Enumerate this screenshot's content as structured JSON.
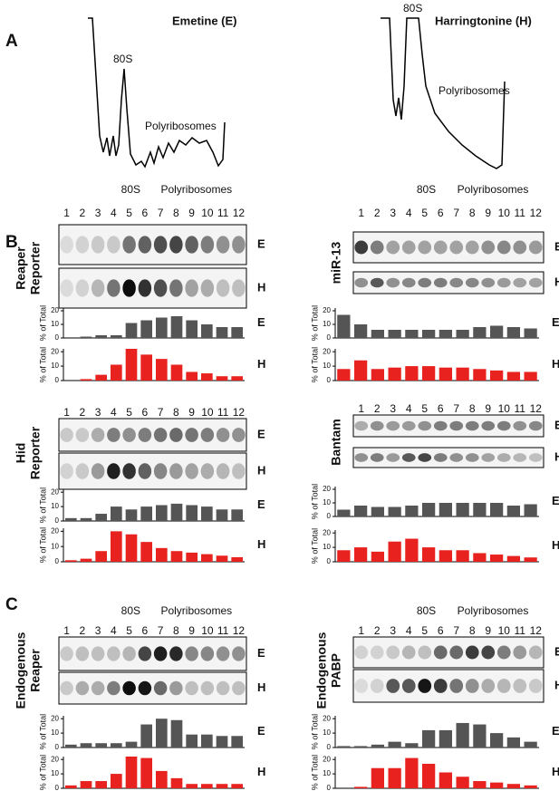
{
  "panel_labels": [
    "A",
    "B",
    "C"
  ],
  "profiles": [
    {
      "title": "Emetine (E)",
      "peak_label": "80S",
      "region_label": "Polyribosomes"
    },
    {
      "title": "Harringtonine (H)",
      "peak_label": "80S",
      "region_label": "Polyribosomes"
    }
  ],
  "blots": [
    {
      "name": [
        "Reaper",
        "Reporter"
      ],
      "peak_label": "80S",
      "region_label": "Polyribosomes",
      "lanes": [
        "1",
        "2",
        "3",
        "4",
        "5",
        "6",
        "7",
        "8",
        "9",
        "10",
        "11",
        "12"
      ],
      "rows": [
        "E",
        "H"
      ]
    },
    {
      "name": [
        "Hid",
        "Reporter"
      ],
      "lanes": [
        "1",
        "2",
        "3",
        "4",
        "5",
        "6",
        "7",
        "8",
        "9",
        "10",
        "11",
        "12"
      ],
      "rows": [
        "E",
        "H"
      ]
    },
    {
      "name": [
        "miR-13"
      ],
      "peak_label": "80S",
      "region_label": "Polyribosomes",
      "lanes": [
        "1",
        "2",
        "3",
        "4",
        "5",
        "6",
        "7",
        "8",
        "9",
        "10",
        "11",
        "12"
      ],
      "rows": [
        "E",
        "H"
      ]
    },
    {
      "name": [
        "Bantam"
      ],
      "lanes": [
        "1",
        "2",
        "3",
        "4",
        "5",
        "6",
        "7",
        "8",
        "9",
        "10",
        "11",
        "12"
      ],
      "rows": [
        "E",
        "H"
      ]
    },
    {
      "name": [
        "Endogenous",
        "Reaper"
      ],
      "peak_label": "80S",
      "region_label": "Polyribosomes",
      "lanes": [
        "1",
        "2",
        "3",
        "4",
        "5",
        "6",
        "7",
        "8",
        "9",
        "10",
        "11",
        "12"
      ],
      "rows": [
        "E",
        "H"
      ]
    },
    {
      "name": [
        "Endogenous",
        "PABP"
      ],
      "peak_label": "80S",
      "region_label": "Polyribosomes",
      "lanes": [
        "1",
        "2",
        "3",
        "4",
        "5",
        "6",
        "7",
        "8",
        "9",
        "10",
        "11",
        "12"
      ],
      "rows": [
        "E",
        "H"
      ]
    }
  ],
  "chart_data": [
    {
      "type": "bar",
      "ylabel": "% of Total",
      "tag": "E",
      "color": "#555555",
      "values": [
        0,
        1,
        2,
        2,
        11,
        13,
        15,
        16,
        13,
        10,
        8,
        8
      ],
      "ylim": [
        0,
        22
      ],
      "yticks": [
        0,
        10,
        20
      ]
    },
    {
      "type": "bar",
      "ylabel": "% of Total",
      "tag": "H",
      "color": "#e8231f",
      "values": [
        0,
        1,
        4,
        11,
        22,
        18,
        15,
        11,
        6,
        5,
        3,
        3
      ],
      "ylim": [
        0,
        22
      ],
      "yticks": [
        0,
        10,
        20
      ]
    },
    {
      "type": "bar",
      "ylabel": "% of Total",
      "tag": "E",
      "color": "#555555",
      "values": [
        2,
        2,
        5,
        10,
        8,
        10,
        11,
        12,
        11,
        10,
        8,
        8
      ],
      "ylim": [
        0,
        22
      ],
      "yticks": [
        0,
        10,
        20
      ]
    },
    {
      "type": "bar",
      "ylabel": "% of Total",
      "tag": "H",
      "color": "#e8231f",
      "values": [
        1,
        2,
        7,
        20,
        18,
        13,
        9,
        7,
        6,
        5,
        4,
        3
      ],
      "ylim": [
        0,
        22
      ],
      "yticks": [
        0,
        10,
        20
      ]
    },
    {
      "type": "bar",
      "ylabel": "% of Total",
      "tag": "E",
      "color": "#555555",
      "values": [
        17,
        10,
        6,
        6,
        6,
        6,
        6,
        6,
        8,
        9,
        8,
        7
      ],
      "ylim": [
        0,
        22
      ],
      "yticks": [
        0,
        10,
        20
      ]
    },
    {
      "type": "bar",
      "ylabel": "% of Total",
      "tag": "H",
      "color": "#e8231f",
      "values": [
        8,
        14,
        8,
        9,
        10,
        10,
        9,
        9,
        8,
        7,
        6,
        6
      ],
      "ylim": [
        0,
        22
      ],
      "yticks": [
        0,
        10,
        20
      ]
    },
    {
      "type": "bar",
      "ylabel": "% of Total",
      "tag": "E",
      "color": "#555555",
      "values": [
        5,
        8,
        7,
        7,
        8,
        10,
        10,
        10,
        10,
        10,
        8,
        9
      ],
      "ylim": [
        0,
        22
      ],
      "yticks": [
        0,
        10,
        20
      ]
    },
    {
      "type": "bar",
      "ylabel": "% of Total",
      "tag": "H",
      "color": "#e8231f",
      "values": [
        8,
        10,
        7,
        14,
        16,
        10,
        8,
        8,
        6,
        5,
        4,
        3
      ],
      "ylim": [
        0,
        22
      ],
      "yticks": [
        0,
        10,
        20
      ]
    },
    {
      "type": "bar",
      "ylabel": "% of Total",
      "tag": "E",
      "color": "#555555",
      "values": [
        2,
        3,
        3,
        3,
        4,
        16,
        20,
        19,
        9,
        9,
        8,
        8
      ],
      "ylim": [
        0,
        22
      ],
      "yticks": [
        0,
        10,
        20
      ]
    },
    {
      "type": "bar",
      "ylabel": "% of Total",
      "tag": "H",
      "color": "#e8231f",
      "values": [
        2,
        5,
        5,
        10,
        22,
        21,
        12,
        7,
        3,
        3,
        3,
        3
      ],
      "ylim": [
        0,
        22
      ],
      "yticks": [
        0,
        10,
        20
      ]
    },
    {
      "type": "bar",
      "ylabel": "% of Total",
      "tag": "E",
      "color": "#555555",
      "values": [
        1,
        1,
        2,
        4,
        3,
        12,
        12,
        17,
        16,
        10,
        7,
        4
      ],
      "ylim": [
        0,
        22
      ],
      "yticks": [
        0,
        10,
        20
      ]
    },
    {
      "type": "bar",
      "ylabel": "% of Total",
      "tag": "H",
      "color": "#e8231f",
      "values": [
        0,
        1,
        14,
        14,
        21,
        17,
        11,
        8,
        5,
        4,
        3,
        2
      ],
      "ylim": [
        0,
        22
      ],
      "yticks": [
        0,
        10,
        20
      ]
    }
  ]
}
